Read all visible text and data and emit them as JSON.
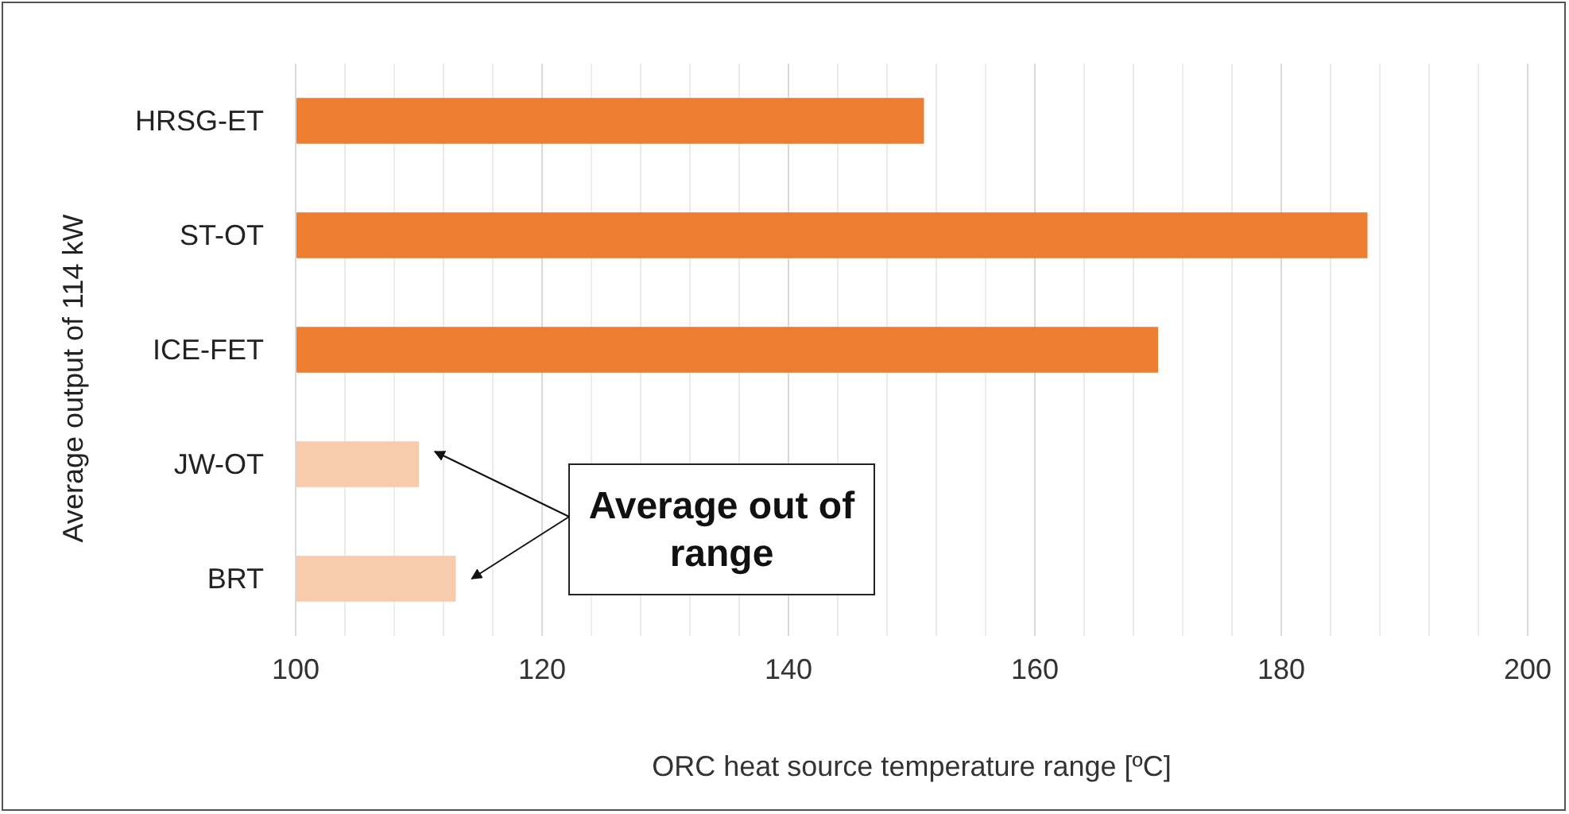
{
  "chart_data": {
    "type": "bar",
    "orientation": "horizontal",
    "categories": [
      "HRSG-ET",
      "ST-OT",
      "ICE-FET",
      "JW-OT",
      "BRT"
    ],
    "values": [
      151,
      187,
      170,
      110,
      113
    ],
    "colors": [
      "#ed7d31",
      "#ed7d31",
      "#ed7d31",
      "#f8cbad",
      "#f8cbad"
    ],
    "xlim": [
      100,
      200
    ],
    "xticks": [
      100,
      {
        "value": 104,
        "label": null
      },
      {
        "value": 108,
        "label": null
      },
      {
        "value": 112,
        "label": null
      },
      {
        "value": 116,
        "label": null
      },
      120,
      {
        "value": 124,
        "label": null
      },
      {
        "value": 128,
        "label": null
      },
      {
        "value": 132,
        "label": null
      },
      {
        "value": 136,
        "label": null
      },
      140,
      {
        "value": 144,
        "label": null
      },
      {
        "value": 148,
        "label": null
      },
      {
        "value": 152,
        "label": null
      },
      {
        "value": 156,
        "label": null
      },
      160,
      {
        "value": 164,
        "label": null
      },
      {
        "value": 168,
        "label": null
      },
      {
        "value": 172,
        "label": null
      },
      {
        "value": 176,
        "label": null
      },
      180,
      {
        "value": 184,
        "label": null
      },
      {
        "value": 188,
        "label": null
      },
      {
        "value": 192,
        "label": null
      },
      {
        "value": 196,
        "label": null
      },
      200
    ],
    "grid": "x",
    "xlabel": "ORC heat source temperature range [ºC]",
    "ylabel": "Average output of 114 kW",
    "annotations": [
      "Average out of range"
    ]
  }
}
